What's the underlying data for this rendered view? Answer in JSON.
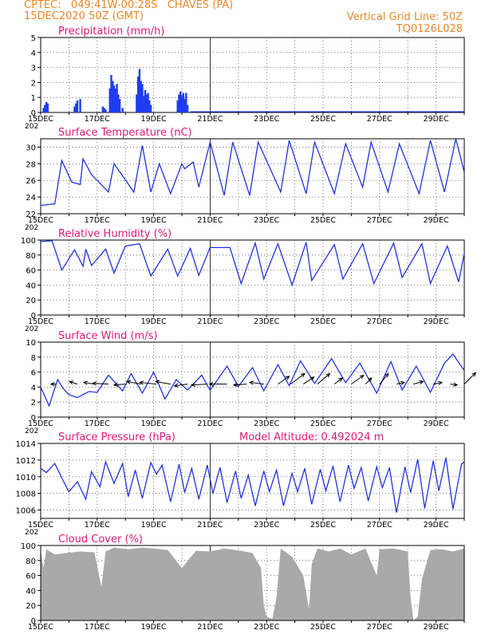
{
  "header": {
    "line1": "CPTEC:   049:41W-00:28S   CHAVES (PA)",
    "line2": "15DEC2020 50Z (GMT)",
    "grid_note": "Vertical Grid Line: 50Z",
    "model_code": "TQ0126L028"
  },
  "colors": {
    "header_text": "#e8862a",
    "title_text": "#e0197a",
    "series_line": "#2233dd",
    "precip_bar": "#1f3cf0",
    "cloud_fill": "#a9a9a9",
    "wind_arrow": "#000000"
  },
  "chart_data": [
    {
      "type": "bar",
      "title": "Precipitation (mm/h)",
      "ylim": [
        0,
        5
      ],
      "yticks": [
        0,
        1,
        2,
        3,
        4,
        5
      ],
      "xlim_days": [
        0,
        15
      ],
      "xticks": [
        "15DEC",
        "17DEC",
        "19DEC",
        "21DEC",
        "23DEC",
        "25DEC",
        "27DEC",
        "29DEC"
      ],
      "x_corner_label": "202",
      "x": [
        0.1,
        0.15,
        0.2,
        0.25,
        1.2,
        1.25,
        1.3,
        1.4,
        2.2,
        2.25,
        2.3,
        2.45,
        2.5,
        2.55,
        2.6,
        2.65,
        2.7,
        2.75,
        2.8,
        2.9,
        3.4,
        3.45,
        3.5,
        3.55,
        3.6,
        3.65,
        3.7,
        3.75,
        3.8,
        3.85,
        3.9,
        4.85,
        4.9,
        4.95,
        5.0,
        5.05,
        5.1,
        5.15,
        5.2
      ],
      "values": [
        0.3,
        0.5,
        0.7,
        0.6,
        0.4,
        0.6,
        0.8,
        0.9,
        0.4,
        0.3,
        0.2,
        1.6,
        2.5,
        2.1,
        1.8,
        1.6,
        1.9,
        1.2,
        0.9,
        0.3,
        1.2,
        2.4,
        2.9,
        2.1,
        1.9,
        1.1,
        1.5,
        1.2,
        1.3,
        0.8,
        0.5,
        0.8,
        1.2,
        1.4,
        1.1,
        1.3,
        0.9,
        1.3,
        0.5
      ]
    },
    {
      "type": "line",
      "title": "Surface Temperature (nC)",
      "ylim": [
        22,
        31
      ],
      "yticks": [
        22,
        24,
        26,
        28,
        30
      ],
      "xlim_days": [
        0,
        15
      ],
      "xticks": [
        "15DEC",
        "17DEC",
        "19DEC",
        "21DEC",
        "23DEC",
        "25DEC",
        "27DEC",
        "29DEC"
      ],
      "x_corner_label": "202",
      "x": [
        0,
        0.5,
        0.75,
        1.1,
        1.4,
        1.5,
        1.8,
        2.4,
        2.6,
        3.3,
        3.6,
        3.9,
        4.2,
        4.6,
        5.0,
        5.1,
        5.4,
        5.6,
        6.0,
        6.5,
        6.8,
        7.4,
        7.7,
        8.5,
        8.8,
        9.4,
        9.7,
        10.4,
        10.8,
        11.4,
        11.7,
        12.3,
        12.7,
        13.4,
        13.8,
        14.3,
        14.7,
        15.0
      ],
      "values": [
        23,
        23.2,
        28.4,
        25.8,
        25.5,
        28.6,
        26.7,
        24.6,
        28,
        24.6,
        30.2,
        24.6,
        28,
        24.4,
        28,
        27.4,
        28.2,
        25.2,
        30.6,
        24.2,
        30.6,
        24.2,
        30.6,
        24.6,
        30.8,
        24.4,
        30.6,
        24.4,
        30.4,
        25.2,
        30.6,
        24.6,
        30.4,
        24.4,
        30.8,
        24.6,
        31,
        27
      ]
    },
    {
      "type": "line",
      "title": "Relative Humidity (%)",
      "ylim": [
        0,
        100
      ],
      "yticks": [
        0,
        20,
        40,
        60,
        80,
        100
      ],
      "xlim_days": [
        0,
        15
      ],
      "xticks": [
        "15DEC",
        "17DEC",
        "19DEC",
        "21DEC",
        "23DEC",
        "25DEC",
        "27DEC",
        "29DEC"
      ],
      "x_corner_label": "202",
      "x": [
        0,
        0.4,
        0.75,
        1.2,
        1.5,
        1.6,
        1.8,
        2.3,
        2.6,
        3.0,
        3.5,
        3.9,
        4.5,
        4.85,
        5.3,
        5.6,
        6.0,
        6.7,
        7.1,
        7.6,
        7.9,
        8.4,
        8.9,
        9.4,
        9.6,
        10.4,
        10.7,
        11.4,
        11.8,
        12.5,
        12.8,
        13.5,
        13.8,
        14.4,
        14.8,
        15.0
      ],
      "values": [
        98,
        99,
        60,
        87,
        65,
        88,
        66,
        88,
        56,
        92,
        95,
        52,
        88,
        52,
        89,
        53,
        90,
        90,
        42,
        96,
        48,
        95,
        40,
        97,
        46,
        94,
        48,
        95,
        42,
        96,
        50,
        95,
        42,
        92,
        44,
        82
      ]
    },
    {
      "type": "line",
      "title": "Surface Wind (m/s)",
      "ylim": [
        0,
        10
      ],
      "yticks": [
        0,
        2,
        4,
        6,
        8,
        10
      ],
      "xlim_days": [
        0,
        15
      ],
      "xticks": [
        "15DEC",
        "17DEC",
        "19DEC",
        "21DEC",
        "23DEC",
        "25DEC",
        "27DEC",
        "29DEC"
      ],
      "x_corner_label": "202",
      "x": [
        0,
        0.3,
        0.6,
        0.8,
        1.0,
        1.3,
        1.7,
        2.0,
        2.4,
        2.9,
        3.2,
        3.6,
        4.0,
        4.4,
        4.8,
        5.2,
        5.7,
        6.0,
        6.6,
        7.0,
        7.5,
        7.9,
        8.4,
        8.8,
        9.2,
        9.7,
        10.3,
        10.8,
        11.3,
        11.9,
        12.4,
        12.8,
        13.3,
        13.8,
        14.3,
        14.6,
        15.0
      ],
      "values": [
        4,
        1.5,
        5,
        3.8,
        3,
        2.6,
        3.4,
        3.3,
        5.6,
        3.5,
        5.8,
        3.2,
        6,
        2.4,
        5,
        3.6,
        5.6,
        3.6,
        6.8,
        4.1,
        6.6,
        3.5,
        7,
        4.2,
        7.5,
        4.5,
        7.8,
        4.6,
        7.2,
        3.2,
        7.4,
        3.6,
        6.8,
        3.3,
        7.2,
        8.4,
        6.2
      ],
      "arrow_x": [
        0.55,
        1.3,
        1.9,
        2.4,
        3.0,
        3.55,
        4.1,
        4.6,
        5.2,
        5.9,
        6.6,
        7.3,
        7.9,
        8.4,
        8.85,
        9.3,
        9.8,
        10.4,
        11.0,
        11.5,
        12.0,
        12.6,
        13.2,
        13.9,
        14.5,
        15.0
      ],
      "arrow_u": [
        -0.6,
        -0.9,
        -1.2,
        -1.8,
        -1.3,
        -1.6,
        -1.9,
        -1.7,
        -1.5,
        -1.8,
        -2.0,
        -1.5,
        -1.6,
        1.3,
        1.6,
        1.2,
        1.4,
        0.9,
        1.4,
        0.7,
        1.0,
        0.9,
        1.1,
        1.0,
        0.8,
        1.3
      ],
      "arrow_v": [
        0.0,
        0.3,
        0.2,
        0.1,
        -0.1,
        0.3,
        0.2,
        0.3,
        -0.2,
        -0.1,
        0.0,
        -0.1,
        0.2,
        0.9,
        1.2,
        0.8,
        1.2,
        0.7,
        1.0,
        0.7,
        1.2,
        0.2,
        0.3,
        0.2,
        -0.1,
        1.3
      ]
    },
    {
      "type": "line",
      "title": "Surface Pressure (hPa)",
      "annotation": "Model Altitude: 0.492024 m",
      "ylim": [
        1005,
        1014
      ],
      "yticks": [
        1006,
        1008,
        1010,
        1012,
        1014
      ],
      "xlim_days": [
        0,
        15
      ],
      "xticks": [
        "15DEC",
        "17DEC",
        "19DEC",
        "21DEC",
        "23DEC",
        "25DEC",
        "27DEC",
        "29DEC"
      ],
      "x_corner_label": "202",
      "x": [
        0,
        0.2,
        0.5,
        0.8,
        1.0,
        1.3,
        1.6,
        1.8,
        2.1,
        2.3,
        2.6,
        2.9,
        3.1,
        3.35,
        3.6,
        3.9,
        4.1,
        4.3,
        4.6,
        4.9,
        5.1,
        5.35,
        5.6,
        5.9,
        6.1,
        6.35,
        6.6,
        6.9,
        7.1,
        7.35,
        7.6,
        7.9,
        8.1,
        8.35,
        8.6,
        8.9,
        9.1,
        9.35,
        9.6,
        9.9,
        10.1,
        10.35,
        10.6,
        10.9,
        11.1,
        11.35,
        11.6,
        11.9,
        12.1,
        12.35,
        12.6,
        12.9,
        13.1,
        13.35,
        13.6,
        13.9,
        14.1,
        14.35,
        14.6,
        14.9,
        15.0
      ],
      "values": [
        1011,
        1010.5,
        1011.6,
        1009.5,
        1008.2,
        1009.4,
        1007.3,
        1010.6,
        1008.8,
        1011.8,
        1009.2,
        1011.6,
        1007.6,
        1010.8,
        1007.4,
        1011.7,
        1010.3,
        1011.4,
        1007.0,
        1011.5,
        1008.1,
        1011.0,
        1007.3,
        1011.4,
        1008.0,
        1011.1,
        1006.9,
        1010.7,
        1007.4,
        1010.2,
        1006.5,
        1010.7,
        1008.2,
        1010.8,
        1006.5,
        1010.4,
        1008.2,
        1011.0,
        1006.7,
        1010.9,
        1008.3,
        1011.3,
        1007.0,
        1011.4,
        1008.6,
        1011.1,
        1007.1,
        1011.2,
        1008.7,
        1011.1,
        1005.7,
        1011.2,
        1008.1,
        1012.1,
        1006.2,
        1011.9,
        1008.3,
        1012.3,
        1006.1,
        1011.5,
        1011.8
      ]
    },
    {
      "type": "area",
      "title": "Cloud Cover (%)",
      "ylim": [
        0,
        100
      ],
      "yticks": [
        0,
        20,
        40,
        60,
        80,
        100
      ],
      "xlim_days": [
        0,
        15
      ],
      "xticks": [
        "15DEC",
        "17DEC",
        "19DEC",
        "21DEC",
        "23DEC",
        "25DEC",
        "27DEC",
        "29DEC"
      ],
      "x_corner_label": "",
      "x": [
        0,
        0.1,
        0.2,
        0.5,
        0.9,
        1.4,
        1.9,
        2.15,
        2.3,
        2.6,
        3.1,
        3.6,
        4.0,
        4.5,
        5.0,
        5.5,
        6.0,
        6.5,
        7.1,
        7.5,
        7.8,
        7.9,
        8.0,
        8.2,
        8.35,
        8.5,
        8.9,
        9.3,
        9.5,
        9.6,
        9.8,
        10.2,
        10.6,
        11.0,
        11.5,
        11.9,
        12.0,
        12.5,
        13.0,
        13.1,
        13.2,
        13.35,
        13.5,
        13.8,
        14.2,
        14.6,
        15.0
      ],
      "values": [
        94,
        70,
        95,
        88,
        90,
        92,
        91,
        45,
        92,
        97,
        95,
        97,
        96,
        94,
        70,
        93,
        92,
        96,
        93,
        90,
        70,
        20,
        5,
        2,
        30,
        96,
        85,
        60,
        15,
        75,
        96,
        92,
        96,
        88,
        96,
        60,
        95,
        96,
        92,
        30,
        0,
        5,
        55,
        94,
        95,
        92,
        96
      ]
    }
  ]
}
